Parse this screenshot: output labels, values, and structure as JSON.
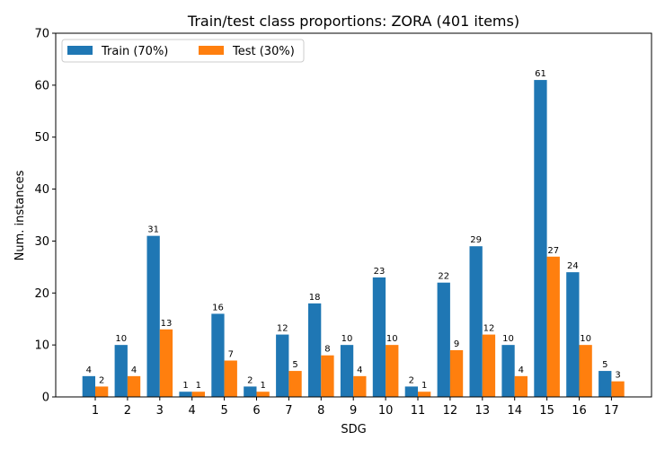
{
  "chart_data": {
    "type": "bar",
    "title": "Train/test class proportions: ZORA (401 items)",
    "xlabel": "SDG",
    "ylabel": "Num. instances",
    "ylim": [
      0,
      70
    ],
    "yticks": [
      0,
      10,
      20,
      30,
      40,
      50,
      60,
      70
    ],
    "categories": [
      "1",
      "2",
      "3",
      "4",
      "5",
      "6",
      "7",
      "8",
      "9",
      "10",
      "11",
      "12",
      "13",
      "14",
      "15",
      "16",
      "17"
    ],
    "series": [
      {
        "name": "Train (70%)",
        "color": "#1f77b4",
        "values": [
          4,
          10,
          31,
          1,
          16,
          2,
          12,
          18,
          10,
          23,
          2,
          22,
          29,
          10,
          61,
          24,
          5
        ]
      },
      {
        "name": "Test (30%)",
        "color": "#ff7f0e",
        "values": [
          2,
          4,
          13,
          1,
          7,
          1,
          5,
          8,
          4,
          10,
          1,
          9,
          12,
          4,
          27,
          10,
          3
        ]
      }
    ],
    "legend_position": "top-left",
    "grid": false
  }
}
